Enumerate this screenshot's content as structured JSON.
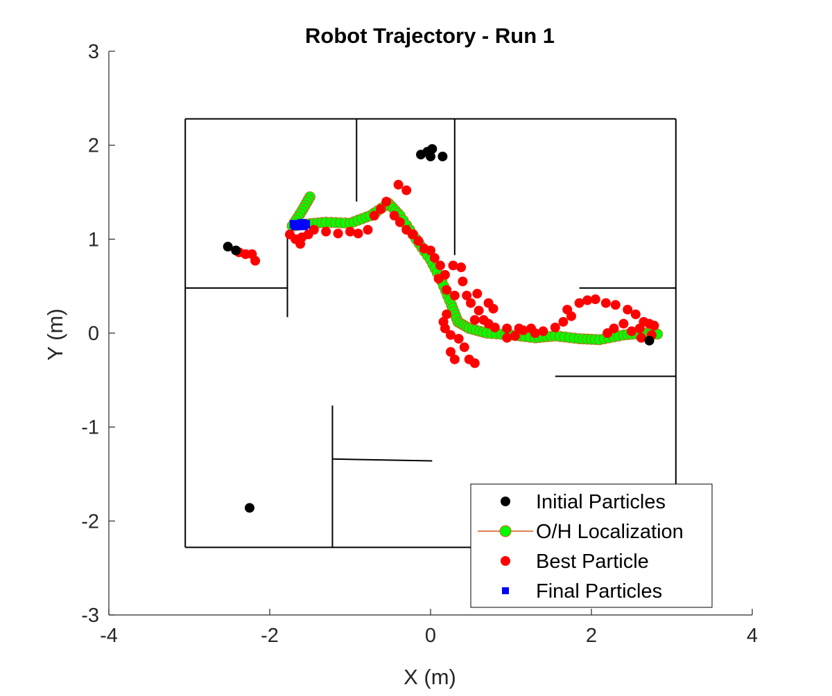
{
  "chart_data": {
    "type": "scatter",
    "title": "Robot Trajectory - Run 1",
    "xlabel": "X (m)",
    "ylabel": "Y (m)",
    "xlim": [
      -4,
      4
    ],
    "ylim": [
      -3,
      3
    ],
    "xticks": [
      -4,
      -2,
      0,
      2,
      4
    ],
    "yticks": [
      -3,
      -2,
      -1,
      0,
      1,
      2,
      3
    ],
    "x_tick_labels": [
      "-4",
      "-2",
      "0",
      "2",
      "4"
    ],
    "y_tick_labels": [
      "-3",
      "-2",
      "-1",
      "0",
      "1",
      "2",
      "3"
    ],
    "grid": false,
    "legend_position": "bottom-right",
    "map_walls": [
      [
        [
          -3.05,
          2.28
        ],
        [
          3.05,
          2.28
        ]
      ],
      [
        [
          -3.05,
          2.28
        ],
        [
          -3.05,
          -2.28
        ]
      ],
      [
        [
          3.05,
          2.28
        ],
        [
          3.05,
          -2.28
        ]
      ],
      [
        [
          -3.05,
          -2.28
        ],
        [
          3.05,
          -2.28
        ]
      ],
      [
        [
          -0.92,
          2.28
        ],
        [
          -0.92,
          1.4
        ]
      ],
      [
        [
          0.3,
          2.28
        ],
        [
          0.3,
          0.83
        ]
      ],
      [
        [
          -3.05,
          0.48
        ],
        [
          -1.78,
          0.48
        ]
      ],
      [
        [
          -1.78,
          1.03
        ],
        [
          -1.78,
          0.17
        ]
      ],
      [
        [
          1.85,
          0.48
        ],
        [
          3.05,
          0.48
        ]
      ],
      [
        [
          1.55,
          -0.46
        ],
        [
          3.05,
          -0.46
        ]
      ],
      [
        [
          -1.22,
          -0.77
        ],
        [
          -1.22,
          -2.28
        ]
      ],
      [
        [
          -1.22,
          -1.34
        ],
        [
          0.02,
          -1.36
        ]
      ]
    ],
    "series": [
      {
        "name": "Initial Particles",
        "color": "#000000",
        "marker": "circle",
        "points": [
          [
            -2.52,
            0.92
          ],
          [
            -2.42,
            0.88
          ],
          [
            -0.12,
            1.9
          ],
          [
            -0.04,
            1.93
          ],
          [
            0.02,
            1.96
          ],
          [
            0.0,
            1.88
          ],
          [
            0.15,
            1.88
          ],
          [
            -2.25,
            -1.86
          ],
          [
            2.72,
            -0.08
          ]
        ]
      },
      {
        "name": "O/H Localization",
        "color": "#00ff00",
        "line_color": "#d95319",
        "marker": "circle",
        "points": [
          [
            -1.5,
            1.45
          ],
          [
            -1.6,
            1.3
          ],
          [
            -1.72,
            1.14
          ],
          [
            -1.55,
            1.16
          ],
          [
            -1.3,
            1.18
          ],
          [
            -1.0,
            1.17
          ],
          [
            -0.75,
            1.25
          ],
          [
            -0.52,
            1.38
          ],
          [
            -0.38,
            1.25
          ],
          [
            -0.18,
            1.0
          ],
          [
            0.0,
            0.78
          ],
          [
            0.14,
            0.55
          ],
          [
            0.26,
            0.3
          ],
          [
            0.34,
            0.12
          ],
          [
            0.48,
            0.05
          ],
          [
            0.7,
            0.0
          ],
          [
            1.0,
            -0.02
          ],
          [
            1.3,
            -0.05
          ],
          [
            1.55,
            -0.03
          ],
          [
            1.85,
            -0.06
          ],
          [
            2.1,
            -0.07
          ],
          [
            2.4,
            -0.02
          ],
          [
            2.65,
            0.0
          ],
          [
            2.82,
            -0.01
          ]
        ]
      },
      {
        "name": "Best Particle",
        "color": "#ff0000",
        "marker": "circle",
        "points": [
          [
            -2.38,
            0.86
          ],
          [
            -2.3,
            0.84
          ],
          [
            -2.22,
            0.84
          ],
          [
            -2.18,
            0.77
          ],
          [
            -1.75,
            1.05
          ],
          [
            -1.68,
            1.0
          ],
          [
            -1.6,
            1.02
          ],
          [
            -1.52,
            1.05
          ],
          [
            -1.45,
            1.1
          ],
          [
            -1.62,
            0.95
          ],
          [
            -1.3,
            1.08
          ],
          [
            -1.15,
            1.06
          ],
          [
            -1.0,
            1.08
          ],
          [
            -0.9,
            1.06
          ],
          [
            -0.78,
            1.1
          ],
          [
            -0.7,
            1.25
          ],
          [
            -0.62,
            1.32
          ],
          [
            -0.55,
            1.4
          ],
          [
            -0.4,
            1.58
          ],
          [
            -0.3,
            1.52
          ],
          [
            -0.45,
            1.25
          ],
          [
            -0.38,
            1.18
          ],
          [
            -0.3,
            1.1
          ],
          [
            -0.22,
            1.05
          ],
          [
            -0.15,
            0.98
          ],
          [
            -0.08,
            0.9
          ],
          [
            0.0,
            0.88
          ],
          [
            0.05,
            0.8
          ],
          [
            0.12,
            0.72
          ],
          [
            0.18,
            0.62
          ],
          [
            0.28,
            0.72
          ],
          [
            0.38,
            0.7
          ],
          [
            0.4,
            0.55
          ],
          [
            0.1,
            0.58
          ],
          [
            0.2,
            0.46
          ],
          [
            0.3,
            0.4
          ],
          [
            0.45,
            0.4
          ],
          [
            0.5,
            0.32
          ],
          [
            0.58,
            0.42
          ],
          [
            0.72,
            0.32
          ],
          [
            0.78,
            0.26
          ],
          [
            0.6,
            0.24
          ],
          [
            0.55,
            0.14
          ],
          [
            0.66,
            0.14
          ],
          [
            0.72,
            0.1
          ],
          [
            0.8,
            0.06
          ],
          [
            0.2,
            0.2
          ],
          [
            0.18,
            0.05
          ],
          [
            0.25,
            -0.02
          ],
          [
            0.16,
            0.12
          ],
          [
            0.35,
            -0.06
          ],
          [
            0.42,
            -0.15
          ],
          [
            0.25,
            -0.2
          ],
          [
            0.3,
            -0.28
          ],
          [
            0.48,
            -0.28
          ],
          [
            0.55,
            -0.32
          ],
          [
            0.95,
            0.05
          ],
          [
            1.1,
            0.05
          ],
          [
            1.25,
            0.05
          ],
          [
            1.4,
            0.02
          ],
          [
            1.55,
            0.06
          ],
          [
            1.65,
            0.12
          ],
          [
            1.75,
            0.18
          ],
          [
            1.7,
            0.25
          ],
          [
            1.85,
            0.32
          ],
          [
            1.95,
            0.35
          ],
          [
            2.05,
            0.36
          ],
          [
            2.18,
            0.32
          ],
          [
            2.3,
            0.3
          ],
          [
            2.45,
            0.25
          ],
          [
            2.55,
            0.2
          ],
          [
            2.65,
            0.12
          ],
          [
            2.72,
            0.1
          ],
          [
            2.78,
            0.08
          ],
          [
            2.6,
            0.05
          ],
          [
            2.5,
            0.02
          ],
          [
            2.62,
            -0.05
          ],
          [
            2.75,
            -0.02
          ],
          [
            2.4,
            0.1
          ],
          [
            2.28,
            0.05
          ],
          [
            2.2,
            0.0
          ],
          [
            1.05,
            -0.03
          ],
          [
            0.95,
            -0.05
          ],
          [
            1.15,
            0.03
          ],
          [
            1.3,
            0.0
          ]
        ]
      },
      {
        "name": "Final Particles",
        "color": "#0000ff",
        "marker": "square",
        "points": [
          [
            -1.7,
            1.16
          ],
          [
            -1.65,
            1.15
          ],
          [
            -1.6,
            1.17
          ],
          [
            -1.55,
            1.16
          ],
          [
            -1.68,
            1.14
          ],
          [
            -1.58,
            1.14
          ]
        ]
      }
    ]
  }
}
